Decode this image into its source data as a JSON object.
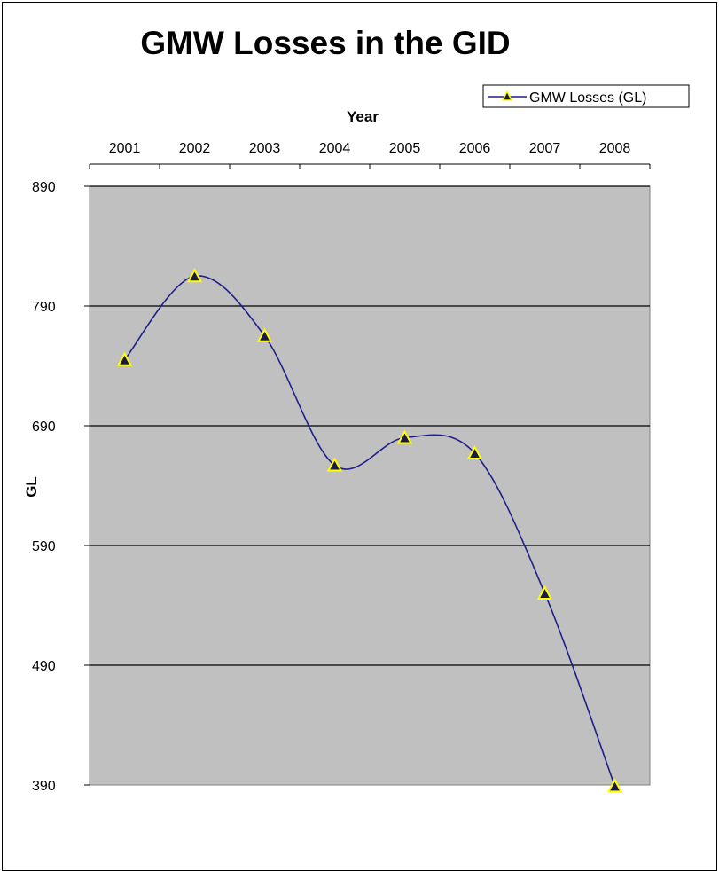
{
  "chart_data": {
    "type": "line",
    "title": "GMW Losses in the GID",
    "xlabel": "Year",
    "ylabel": "GL",
    "categories": [
      "2001",
      "2002",
      "2003",
      "2004",
      "2005",
      "2006",
      "2007",
      "2008"
    ],
    "series": [
      {
        "name": "GMW Losses (GL)",
        "values": [
          745,
          815,
          765,
          657,
          680,
          667,
          550,
          389
        ]
      }
    ],
    "ylim": [
      390,
      890
    ],
    "yticks": [
      "890",
      "790",
      "690",
      "590",
      "490",
      "390"
    ],
    "x_axis_position": "top",
    "legend_position": "top-right",
    "smoothed": true,
    "grid": "horizontal",
    "colors": {
      "plot_background": "#c0c0c0",
      "line": "#1f1f8a",
      "marker_fill": "#1a1a4a",
      "marker_edge": "#ffff00",
      "gridline": "#000000"
    }
  }
}
